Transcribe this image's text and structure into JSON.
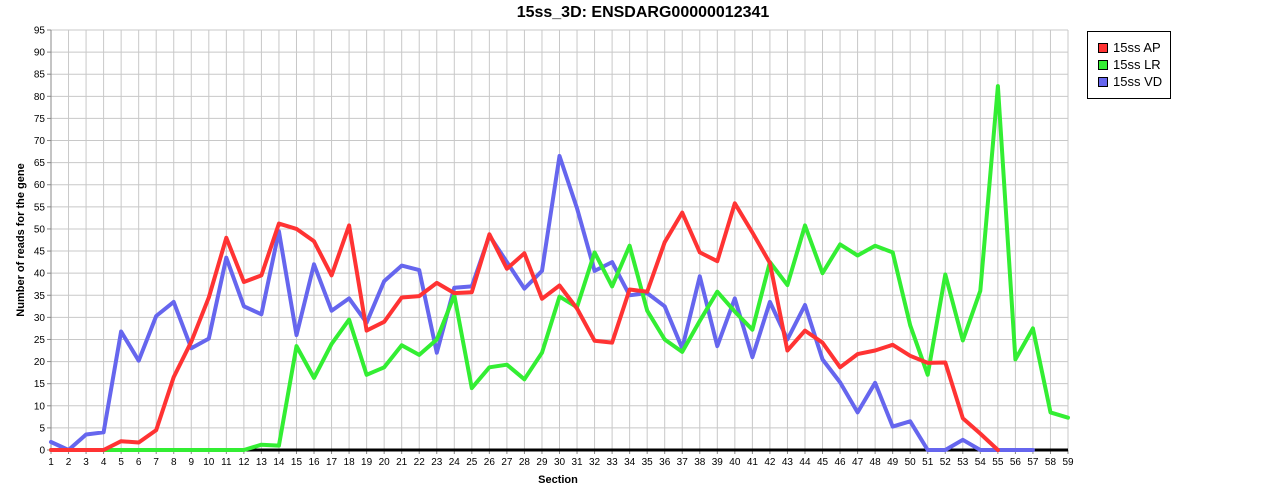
{
  "chart_data": {
    "type": "line",
    "title": "15ss_3D: ENSDARG00000012341",
    "xlabel": "Section",
    "ylabel": "Number of reads for the gene",
    "x": [
      1,
      2,
      3,
      4,
      5,
      6,
      7,
      8,
      9,
      10,
      11,
      12,
      13,
      14,
      15,
      16,
      17,
      18,
      19,
      20,
      21,
      22,
      23,
      24,
      25,
      26,
      27,
      28,
      29,
      30,
      31,
      32,
      33,
      34,
      35,
      36,
      37,
      38,
      39,
      40,
      41,
      42,
      43,
      44,
      45,
      46,
      47,
      48,
      49,
      50,
      51,
      52,
      53,
      54,
      55,
      56,
      57,
      58,
      59
    ],
    "ylim": [
      0,
      95
    ],
    "yticks": [
      0,
      5,
      10,
      15,
      20,
      25,
      30,
      35,
      40,
      45,
      50,
      55,
      60,
      65,
      70,
      75,
      80,
      85,
      90,
      95
    ],
    "grid": true,
    "legend_position": "top-right",
    "series": [
      {
        "name": "15ss AP",
        "color": "#ff3333",
        "values": [
          0,
          0,
          0,
          0,
          2,
          1.7,
          4.5,
          16.5,
          24.5,
          34.5,
          48,
          38,
          39.5,
          51.2,
          50,
          47.2,
          39.5,
          50.8,
          27,
          29,
          34.5,
          34.8,
          37.8,
          35.5,
          35.7,
          48.8,
          41,
          44.5,
          34.2,
          37.2,
          32,
          24.7,
          24.3,
          36.3,
          35.8,
          47,
          53.7,
          44.7,
          42.7,
          55.8,
          49.2,
          42.3,
          22.5,
          27,
          24.3,
          18.7,
          21.7,
          22.5,
          23.8,
          21.3,
          19.7,
          19.8,
          7.2,
          3.7,
          0,
          null,
          null,
          null,
          null
        ]
      },
      {
        "name": "15ss LR",
        "color": "#33ee33",
        "values": [
          0,
          0,
          0,
          0,
          0,
          0,
          0,
          0,
          0,
          0,
          0,
          0,
          1.2,
          1,
          23.5,
          16.3,
          24,
          29.5,
          17,
          18.7,
          23.7,
          21.5,
          25,
          35,
          14,
          18.7,
          19.3,
          16,
          22,
          34.7,
          32.3,
          44.7,
          37,
          46.2,
          31.5,
          25,
          22.2,
          29.2,
          35.8,
          31.3,
          27.2,
          42.5,
          37.3,
          50.8,
          40,
          46.5,
          44,
          46.2,
          44.7,
          28.2,
          17,
          39.7,
          24.8,
          36,
          82.3,
          20.5,
          27.5,
          8.5,
          7.3
        ]
      },
      {
        "name": "15ss VD",
        "color": "#6666ee",
        "values": [
          1.8,
          0,
          3.5,
          4,
          26.8,
          20.2,
          30.3,
          33.5,
          23,
          25.2,
          43.5,
          32.5,
          30.7,
          49.5,
          26,
          42,
          31.5,
          34.3,
          28.8,
          38.2,
          41.7,
          40.7,
          22,
          36.7,
          37,
          48.5,
          42.5,
          36.5,
          40.5,
          66.5,
          54.7,
          40.5,
          42.5,
          35,
          35.5,
          32.5,
          23,
          39.3,
          23.5,
          34.3,
          21,
          33.5,
          25,
          32.8,
          20.5,
          15.3,
          8.5,
          15.2,
          5.3,
          6.5,
          0,
          0,
          2.3,
          0,
          0,
          0,
          0,
          null,
          null
        ]
      }
    ]
  }
}
